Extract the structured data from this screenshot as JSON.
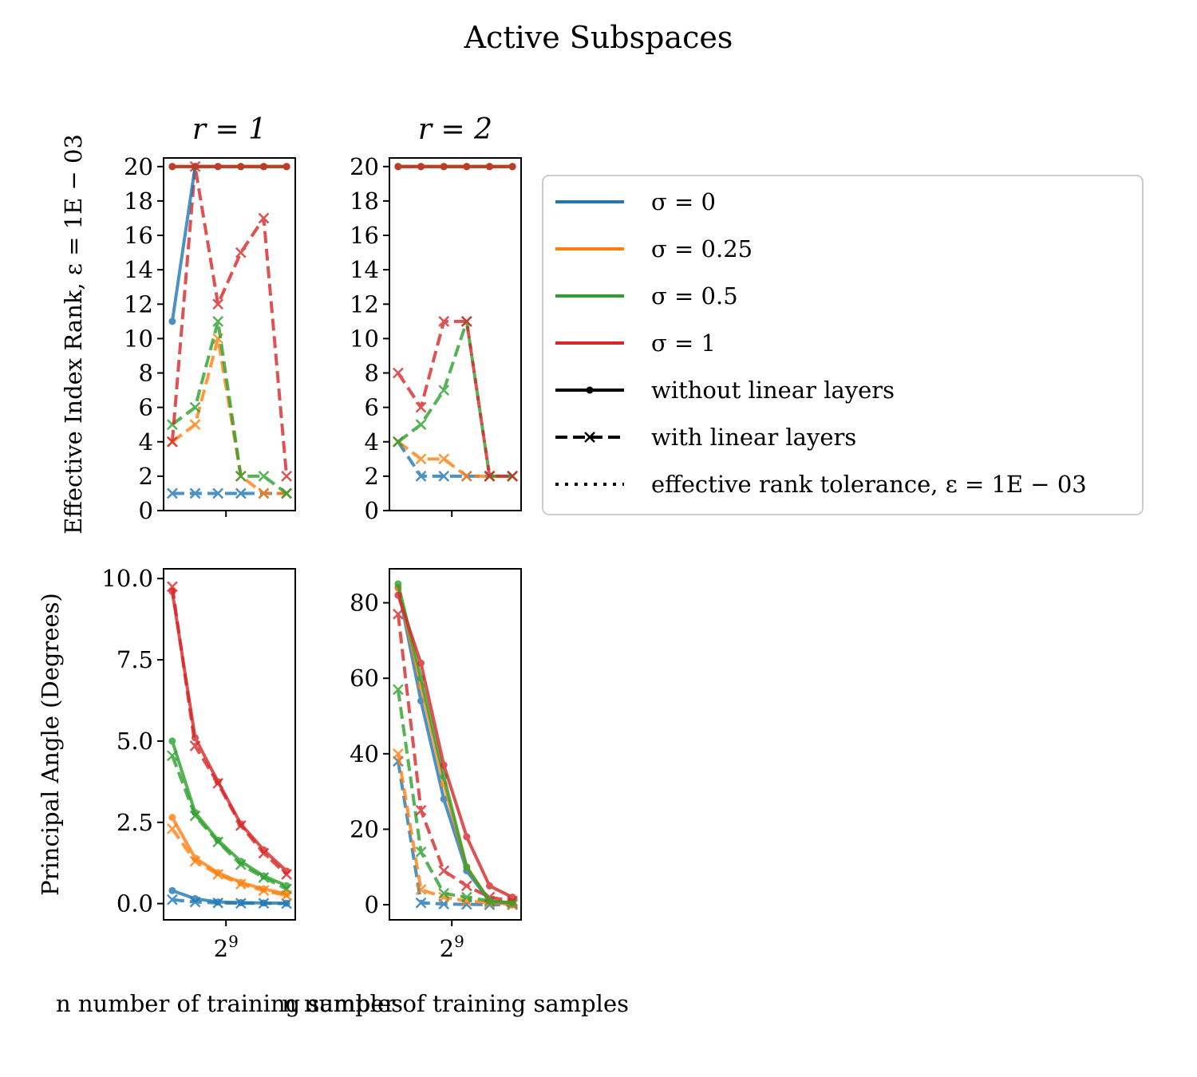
{
  "figure": {
    "title": "Active Subspaces"
  },
  "colors": {
    "sigma_0": "#1f77b4",
    "sigma_0.25": "#ff7f0e",
    "sigma_0.5": "#2ca02c",
    "sigma_1": "#d62728"
  },
  "legend": {
    "placement": "right of top row",
    "items": [
      {
        "label": "σ = 0",
        "color_key": "sigma_0",
        "style": "solid"
      },
      {
        "label": "σ = 0.25",
        "color_key": "sigma_0.25",
        "style": "solid"
      },
      {
        "label": "σ = 0.5",
        "color_key": "sigma_0.5",
        "style": "solid"
      },
      {
        "label": "σ = 1",
        "color_key": "sigma_1",
        "style": "solid"
      },
      {
        "label": "without linear layers",
        "color_key": "black",
        "style": "solid-dot"
      },
      {
        "label": "with linear layers",
        "color_key": "black",
        "style": "dashed-x"
      },
      {
        "label": "effective rank tolerance, ε = 1E − 03",
        "color_key": "black",
        "style": "dotted"
      }
    ]
  },
  "chart_data": [
    {
      "panel": "top-left",
      "type": "line",
      "title": "r = 1",
      "ylabel": "Effective Index Rank, ε = 1E − 03",
      "xlabel": "",
      "x_scale": "log2",
      "x": [
        1,
        2,
        3,
        4,
        5,
        6
      ],
      "xticks": [],
      "ylim": [
        0,
        20.5
      ],
      "yticks": [
        0,
        2,
        4,
        6,
        8,
        10,
        12,
        14,
        16,
        18,
        20
      ],
      "ytick_labels": [
        "0",
        "2",
        "4",
        "6",
        "8",
        "10",
        "12",
        "14",
        "16",
        "18",
        "20"
      ],
      "series": [
        {
          "color_key": "sigma_0",
          "style": "solid",
          "values": [
            11,
            20,
            20,
            20,
            20,
            20
          ]
        },
        {
          "color_key": "sigma_0.25",
          "style": "solid",
          "values": [
            20,
            20,
            20,
            20,
            20,
            20
          ]
        },
        {
          "color_key": "sigma_0.5",
          "style": "solid",
          "values": [
            20,
            20,
            20,
            20,
            20,
            20
          ]
        },
        {
          "color_key": "sigma_1",
          "style": "solid",
          "values": [
            20,
            20,
            20,
            20,
            20,
            20
          ]
        },
        {
          "color_key": "sigma_0",
          "style": "dashed",
          "values": [
            1,
            1,
            1,
            1,
            1,
            1
          ]
        },
        {
          "color_key": "sigma_0.25",
          "style": "dashed",
          "values": [
            4,
            5,
            10,
            2,
            1,
            1
          ]
        },
        {
          "color_key": "sigma_0.5",
          "style": "dashed",
          "values": [
            5,
            6,
            11,
            2,
            2,
            1
          ]
        },
        {
          "color_key": "sigma_1",
          "style": "dashed",
          "values": [
            4,
            20,
            12,
            15,
            17,
            2
          ]
        }
      ]
    },
    {
      "panel": "top-right",
      "type": "line",
      "title": "r = 2",
      "ylabel": "",
      "xlabel": "",
      "x_scale": "log2",
      "x": [
        1,
        2,
        3,
        4,
        5,
        6
      ],
      "xticks": [],
      "ylim": [
        0,
        20.5
      ],
      "yticks": [
        0,
        2,
        4,
        6,
        8,
        10,
        12,
        14,
        16,
        18,
        20
      ],
      "ytick_labels": [
        "0",
        "2",
        "4",
        "6",
        "8",
        "10",
        "12",
        "14",
        "16",
        "18",
        "20"
      ],
      "series": [
        {
          "color_key": "sigma_0",
          "style": "solid",
          "values": [
            20,
            20,
            20,
            20,
            20,
            20
          ]
        },
        {
          "color_key": "sigma_0.25",
          "style": "solid",
          "values": [
            20,
            20,
            20,
            20,
            20,
            20
          ]
        },
        {
          "color_key": "sigma_0.5",
          "style": "solid",
          "values": [
            20,
            20,
            20,
            20,
            20,
            20
          ]
        },
        {
          "color_key": "sigma_1",
          "style": "solid",
          "values": [
            20,
            20,
            20,
            20,
            20,
            20
          ]
        },
        {
          "color_key": "sigma_0",
          "style": "dashed",
          "values": [
            4,
            2,
            2,
            2,
            2,
            2
          ]
        },
        {
          "color_key": "sigma_0.25",
          "style": "dashed",
          "values": [
            4,
            3,
            3,
            2,
            2,
            2
          ]
        },
        {
          "color_key": "sigma_0.5",
          "style": "dashed",
          "values": [
            4,
            5,
            7,
            11,
            2,
            2
          ]
        },
        {
          "color_key": "sigma_1",
          "style": "dashed",
          "values": [
            8,
            6,
            11,
            11,
            2,
            2
          ]
        }
      ]
    },
    {
      "panel": "bottom-left",
      "type": "line",
      "title": "",
      "ylabel": "Principal Angle (Degrees)",
      "xlabel": "n number of training samples",
      "x_scale": "log2",
      "x": [
        1,
        2,
        3,
        4,
        5,
        6
      ],
      "xticks": [
        3.35
      ],
      "xtick_labels": [
        "2^9"
      ],
      "ylim": [
        -0.5,
        10.3
      ],
      "yticks": [
        0,
        2.5,
        5,
        7.5,
        10
      ],
      "ytick_labels": [
        "0.0",
        "2.5",
        "5.0",
        "7.5",
        "10.0"
      ],
      "series": [
        {
          "color_key": "sigma_0",
          "style": "solid",
          "values": [
            0.4,
            0.15,
            0.05,
            0.03,
            0.02,
            0.01
          ]
        },
        {
          "color_key": "sigma_0.25",
          "style": "solid",
          "values": [
            2.65,
            1.4,
            0.95,
            0.65,
            0.45,
            0.3
          ]
        },
        {
          "color_key": "sigma_0.5",
          "style": "solid",
          "values": [
            5.0,
            2.8,
            1.95,
            1.3,
            0.85,
            0.55
          ]
        },
        {
          "color_key": "sigma_1",
          "style": "solid",
          "values": [
            9.6,
            5.1,
            3.75,
            2.45,
            1.65,
            1.0
          ]
        },
        {
          "color_key": "sigma_0",
          "style": "dashed",
          "values": [
            0.12,
            0.05,
            0.02,
            0.01,
            0.01,
            0.0
          ]
        },
        {
          "color_key": "sigma_0.25",
          "style": "dashed",
          "values": [
            2.3,
            1.3,
            0.9,
            0.6,
            0.4,
            0.25
          ]
        },
        {
          "color_key": "sigma_0.5",
          "style": "dashed",
          "values": [
            4.55,
            2.7,
            1.9,
            1.2,
            0.8,
            0.45
          ]
        },
        {
          "color_key": "sigma_1",
          "style": "dashed",
          "values": [
            9.75,
            4.85,
            3.7,
            2.4,
            1.55,
            0.9
          ]
        }
      ]
    },
    {
      "panel": "bottom-right",
      "type": "line",
      "title": "",
      "ylabel": "",
      "xlabel": "n number of training samples",
      "x_scale": "log2",
      "x": [
        1,
        2,
        3,
        4,
        5,
        6
      ],
      "xticks": [
        3.35
      ],
      "xtick_labels": [
        "2^9"
      ],
      "ylim": [
        -4,
        89
      ],
      "yticks": [
        0,
        20,
        40,
        60,
        80
      ],
      "ytick_labels": [
        "0",
        "20",
        "40",
        "60",
        "80"
      ],
      "series": [
        {
          "color_key": "sigma_0",
          "style": "solid",
          "values": [
            84,
            54,
            28,
            9,
            1,
            0
          ]
        },
        {
          "color_key": "sigma_0.25",
          "style": "solid",
          "values": [
            84,
            58,
            32,
            10,
            1,
            0
          ]
        },
        {
          "color_key": "sigma_0.5",
          "style": "solid",
          "values": [
            85,
            60,
            34,
            10,
            1,
            0.5
          ]
        },
        {
          "color_key": "sigma_1",
          "style": "solid",
          "values": [
            82,
            64,
            37,
            18,
            5,
            2
          ]
        },
        {
          "color_key": "sigma_0",
          "style": "dashed",
          "values": [
            38,
            0.5,
            0.2,
            0.1,
            0,
            0
          ]
        },
        {
          "color_key": "sigma_0.25",
          "style": "dashed",
          "values": [
            40,
            4,
            2,
            1,
            0.5,
            0.2
          ]
        },
        {
          "color_key": "sigma_0.5",
          "style": "dashed",
          "values": [
            57,
            14,
            3,
            2,
            1,
            0.5
          ]
        },
        {
          "color_key": "sigma_1",
          "style": "dashed",
          "values": [
            77,
            25,
            9,
            5,
            2,
            1
          ]
        }
      ]
    }
  ]
}
